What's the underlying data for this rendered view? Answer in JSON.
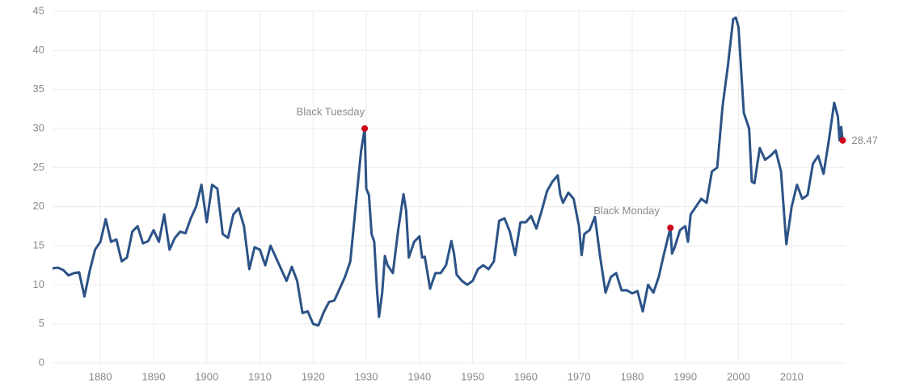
{
  "chart_data": {
    "type": "line",
    "color": "#2b5387",
    "marker_color": "#d0021b",
    "grid": true,
    "xlim": [
      1871,
      2020
    ],
    "xticks": [
      1880,
      1890,
      1900,
      1910,
      1920,
      1930,
      1940,
      1950,
      1960,
      1970,
      1980,
      1990,
      2000,
      2010
    ],
    "ylim": [
      0,
      45
    ],
    "yticks": [
      0,
      5,
      10,
      15,
      20,
      25,
      30,
      35,
      40,
      45
    ],
    "x": [
      1871,
      1872,
      1873,
      1874,
      1875,
      1876,
      1877,
      1878,
      1879,
      1880,
      1881,
      1882,
      1883,
      1884,
      1885,
      1886,
      1887,
      1888,
      1889,
      1890,
      1891,
      1892,
      1893,
      1894,
      1895,
      1896,
      1897,
      1898,
      1899,
      1900,
      1901,
      1902,
      1903,
      1904,
      1905,
      1906,
      1907,
      1908,
      1909,
      1910,
      1911,
      1912,
      1913,
      1914,
      1915,
      1916,
      1917,
      1918,
      1919,
      1920,
      1921,
      1922,
      1923,
      1924,
      1925,
      1926,
      1927,
      1928,
      1929,
      1929.7,
      1930,
      1930.5,
      1931,
      1931.5,
      1932,
      1932.4,
      1933,
      1933.5,
      1934,
      1935,
      1936,
      1937,
      1937.5,
      1938,
      1939,
      1940,
      1940.5,
      1941,
      1942,
      1943,
      1944,
      1945,
      1946,
      1946.5,
      1947,
      1948,
      1949,
      1950,
      1951,
      1952,
      1953,
      1954,
      1955,
      1956,
      1957,
      1958,
      1959,
      1960,
      1961,
      1962,
      1963,
      1964,
      1965,
      1966,
      1966.5,
      1967,
      1968,
      1969,
      1970,
      1970.5,
      1971,
      1972,
      1973,
      1974,
      1975,
      1976,
      1977,
      1978,
      1979,
      1980,
      1981,
      1982,
      1983,
      1984,
      1985,
      1986,
      1987.2,
      1987.5,
      1988,
      1989,
      1990,
      1990.5,
      1991,
      1992,
      1993,
      1994,
      1995,
      1996,
      1997,
      1998,
      1999,
      1999.5,
      2000,
      2001,
      2002,
      2002.5,
      2003,
      2004,
      2005,
      2006,
      2007,
      2008,
      2009,
      2010,
      2011,
      2012,
      2013,
      2014,
      2015,
      2016,
      2017,
      2018,
      2018.7,
      2019,
      2019.3,
      2019.6
    ],
    "values": [
      12.1,
      12.2,
      11.9,
      11.2,
      11.5,
      11.6,
      8.5,
      11.8,
      14.5,
      15.5,
      18.4,
      15.5,
      15.8,
      13.0,
      13.5,
      16.8,
      17.5,
      15.3,
      15.6,
      17.0,
      15.5,
      19.0,
      14.5,
      16.0,
      16.8,
      16.6,
      18.5,
      20.0,
      22.8,
      18.0,
      22.8,
      22.3,
      16.5,
      16.0,
      19.0,
      19.8,
      17.5,
      12.0,
      14.8,
      14.5,
      12.5,
      15.0,
      13.5,
      12.0,
      10.5,
      12.3,
      10.5,
      6.4,
      6.6,
      5.0,
      4.8,
      6.5,
      7.8,
      8.0,
      9.5,
      11.0,
      13.0,
      20.0,
      27.0,
      30,
      22.3,
      21.5,
      16.5,
      15.5,
      9.5,
      5.9,
      9.0,
      13.7,
      12.5,
      11.5,
      17.0,
      21.6,
      19.5,
      13.5,
      15.5,
      16.2,
      13.5,
      13.6,
      9.5,
      11.5,
      11.5,
      12.5,
      15.6,
      14,
      11.3,
      10.5,
      10.0,
      10.5,
      12.0,
      12.5,
      12.0,
      13.0,
      18.2,
      18.5,
      16.8,
      13.8,
      18.0,
      18.0,
      18.8,
      17.2,
      19.5,
      22.0,
      23.2,
      24.0,
      21.5,
      20.5,
      21.8,
      21.0,
      17.5,
      13.8,
      16.5,
      17.0,
      18.7,
      13.5,
      9.0,
      11.0,
      11.5,
      9.3,
      9.3,
      8.9,
      9.2,
      6.6,
      10.0,
      9.0,
      11.0,
      14.0,
      17.3,
      14.0,
      14.8,
      17.0,
      17.5,
      15.5,
      19.0,
      20.0,
      21.0,
      20.5,
      24.5,
      25.0,
      32.8,
      38.0,
      44.0,
      44.2,
      43.0,
      32.0,
      30.0,
      23.2,
      23.0,
      27.5,
      26.0,
      26.5,
      27.2,
      24.5,
      15.2,
      20.0,
      22.8,
      21.0,
      21.5,
      25.5,
      26.5,
      24.2,
      28.5,
      33.3,
      31.5,
      28.5,
      30.2,
      28.47
    ],
    "annotations": [
      {
        "label": "Black Tuesday",
        "x": 1929.7,
        "y": 30
      },
      {
        "label": "Black Monday",
        "x": 1987.2,
        "y": 17.3
      }
    ],
    "last_point": {
      "x": 2019.6,
      "y": 28.47
    }
  }
}
